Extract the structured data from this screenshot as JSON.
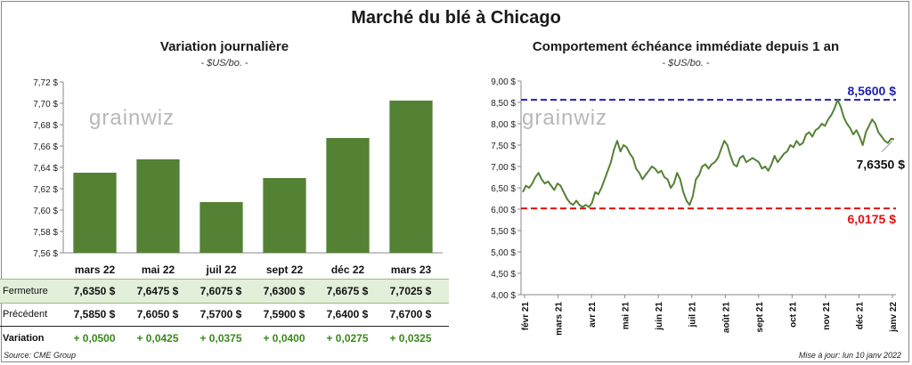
{
  "title": "Marché du blé à Chicago",
  "left": {
    "title": "Variation journalière",
    "unit": "- $US/bo. -",
    "watermark": "grainwiz"
  },
  "right": {
    "title": "Comportement échéance immédiate depuis 1 an",
    "unit": "- $US/bo. -",
    "watermark": "grainwiz",
    "annotations": {
      "high": "8,5600 $",
      "last": "7,6350 $",
      "low": "6,0175 $"
    }
  },
  "table": {
    "rows": [
      {
        "label": "Fermeture",
        "values": [
          "7,6350  $",
          "7,6475  $",
          "7,6075  $",
          "7,6300  $",
          "7,6675  $",
          "7,7025  $"
        ]
      },
      {
        "label": "Précédent",
        "values": [
          "7,5850  $",
          "7,6050  $",
          "7,5700  $",
          "7,5900  $",
          "7,6400  $",
          "7,6700  $"
        ]
      },
      {
        "label": "Variation",
        "values": [
          "+ 0,0500",
          "+ 0,0425",
          "+ 0,0375",
          "+ 0,0400",
          "+ 0,0275",
          "+ 0,0325"
        ]
      }
    ]
  },
  "footer": {
    "source": "Source: CME Group",
    "updated": "Mise à jour: lun 10 janv 2022"
  },
  "colors": {
    "bar": "#548235",
    "line": "#548235",
    "high_line": "#1f1fb4",
    "low_line": "#e01010",
    "table_highlight": "#e2efd9",
    "positive": "#3a8a1a"
  },
  "chart_data": [
    {
      "type": "bar",
      "title": "Variation journalière",
      "categories": [
        "mars 22",
        "mai 22",
        "juil 22",
        "sept 22",
        "déc 22",
        "mars 23"
      ],
      "values": [
        7.635,
        7.6475,
        7.6075,
        7.63,
        7.6675,
        7.7025
      ],
      "ylim": [
        7.56,
        7.72
      ],
      "yticks": [
        "7,56 $",
        "7,58 $",
        "7,60 $",
        "7,62 $",
        "7,64 $",
        "7,66 $",
        "7,68 $",
        "7,70 $",
        "7,72 $"
      ],
      "grid": false
    },
    {
      "type": "line",
      "title": "Comportement échéance immédiate depuis 1 an",
      "x_labels": [
        "févr 21",
        "mars 21",
        "avr 21",
        "mai 21",
        "juin 21",
        "juil 21",
        "août 21",
        "sept 21",
        "oct 21",
        "nov 21",
        "déc 21",
        "janv 22"
      ],
      "ylim": [
        4.0,
        9.0
      ],
      "yticks": [
        "4,00 $",
        "4,50 $",
        "5,00 $",
        "5,50 $",
        "6,00 $",
        "6,50 $",
        "7,00 $",
        "7,50 $",
        "8,00 $",
        "8,50 $",
        "9,00 $"
      ],
      "reference_lines": [
        {
          "value": 8.56
        },
        {
          "value": 6.0175
        }
      ],
      "series": [
        {
          "values": [
            6.4,
            6.55,
            6.5,
            6.6,
            6.75,
            6.85,
            6.7,
            6.6,
            6.65,
            6.55,
            6.45,
            6.6,
            6.55,
            6.4,
            6.25,
            6.15,
            6.1,
            6.2,
            6.1,
            6.05,
            6.1,
            6.05,
            6.15,
            6.4,
            6.35,
            6.5,
            6.7,
            6.9,
            7.1,
            7.4,
            7.6,
            7.35,
            7.5,
            7.45,
            7.3,
            7.2,
            6.95,
            6.85,
            6.7,
            6.8,
            6.9,
            7.0,
            6.95,
            6.85,
            6.9,
            6.75,
            6.7,
            6.5,
            6.6,
            6.85,
            6.7,
            6.4,
            6.2,
            6.1,
            6.3,
            6.7,
            6.8,
            7.0,
            7.05,
            6.95,
            7.05,
            7.1,
            7.2,
            7.4,
            7.6,
            7.5,
            7.25,
            7.05,
            7.0,
            7.2,
            7.25,
            7.1,
            7.15,
            7.2,
            7.15,
            7.1,
            6.95,
            7.0,
            6.9,
            7.05,
            7.25,
            7.1,
            7.2,
            7.3,
            7.35,
            7.5,
            7.45,
            7.6,
            7.5,
            7.55,
            7.75,
            7.8,
            7.7,
            7.85,
            7.9,
            8.0,
            7.95,
            8.1,
            8.2,
            8.35,
            8.56,
            8.4,
            8.15,
            8.0,
            7.9,
            7.75,
            7.85,
            7.7,
            7.5,
            7.8,
            7.95,
            8.1,
            8.0,
            7.8,
            7.7,
            7.6,
            7.55,
            7.65,
            7.635
          ]
        }
      ],
      "grid": false
    }
  ]
}
